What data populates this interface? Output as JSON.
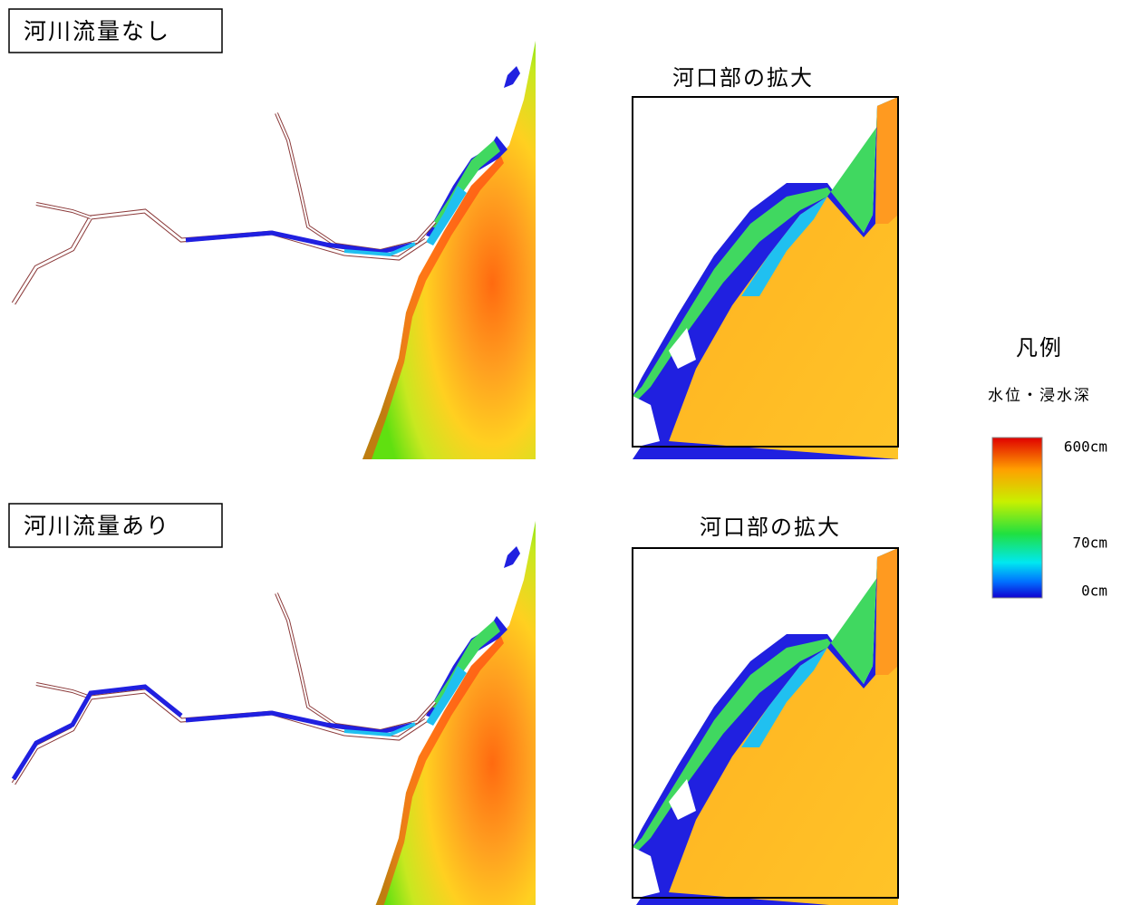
{
  "panels": [
    {
      "label": "河川流量なし",
      "zoom_title": "河口部の拡大"
    },
    {
      "label": "河川流量あり",
      "zoom_title": "河口部の拡大"
    }
  ],
  "legend": {
    "title": "凡例",
    "subtitle": "水位・浸水深",
    "labels": [
      "600cm",
      "70cm",
      "0cm"
    ]
  }
}
